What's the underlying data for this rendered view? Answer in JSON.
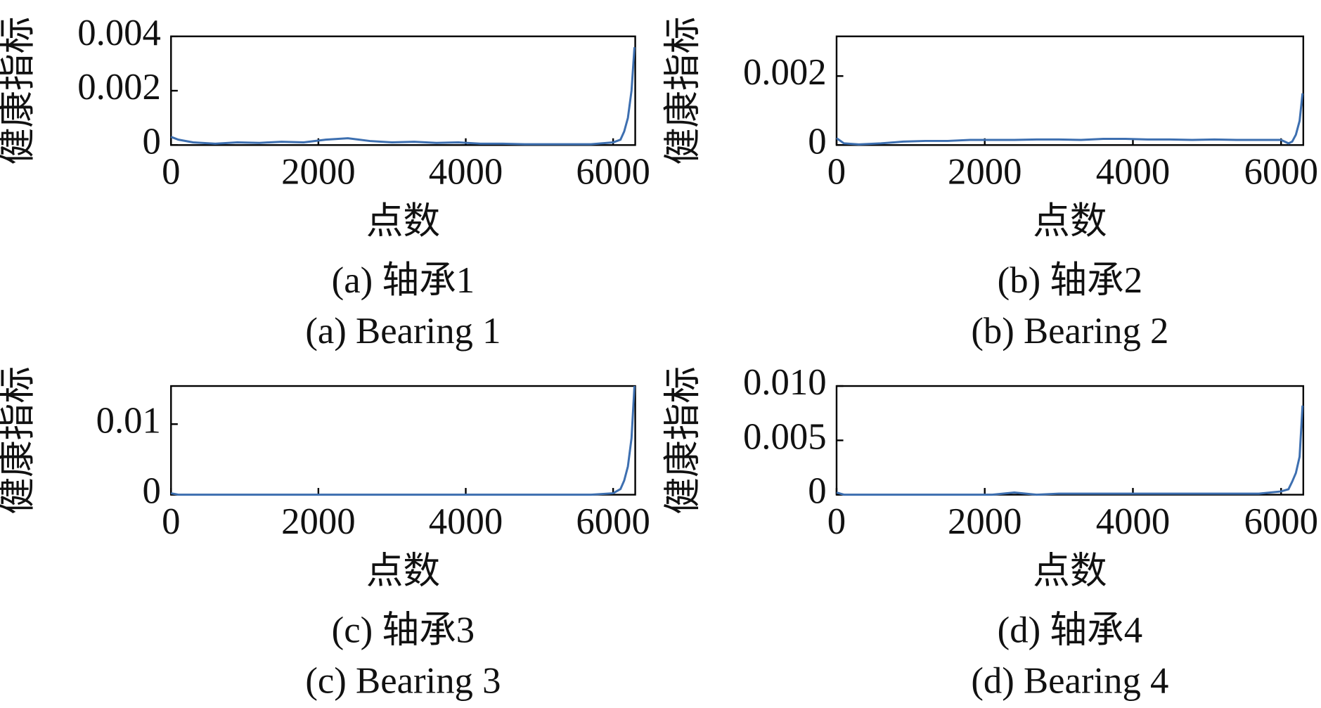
{
  "chart_data": [
    {
      "type": "line",
      "title": "(a) 轴承1",
      "subtitle": "(a) Bearing 1",
      "xlabel": "点数",
      "ylabel": "健康指标",
      "x": [
        0,
        100,
        300,
        600,
        900,
        1200,
        1500,
        1800,
        2100,
        2400,
        2700,
        3000,
        3300,
        3600,
        3900,
        4200,
        4500,
        4800,
        5100,
        5400,
        5700,
        6000,
        6100,
        6150,
        6200,
        6250,
        6290
      ],
      "series": [
        {
          "color": "#3d6fb0",
          "values": [
            0.0003,
            0.0002,
            0.0001,
            5e-05,
            0.0001,
            8e-05,
            0.00012,
            0.0001,
            0.0002,
            0.00025,
            0.00015,
            0.0001,
            0.00012,
            8e-05,
            0.0001,
            5e-05,
            5e-05,
            3e-05,
            3e-05,
            3e-05,
            3e-05,
            0.0001,
            0.0002,
            0.0005,
            0.001,
            0.002,
            0.0036
          ]
        }
      ],
      "xlim": [
        0,
        6300
      ],
      "xticks": [
        0,
        2000,
        4000,
        6000
      ],
      "ylim": [
        0,
        0.004
      ],
      "yticks": [
        0,
        0.002,
        0.004
      ]
    },
    {
      "type": "line",
      "title": "(b) 轴承2",
      "subtitle": "(b) Bearing 2",
      "xlabel": "点数",
      "ylabel": "健康指标",
      "x": [
        0,
        100,
        300,
        600,
        900,
        1200,
        1500,
        1800,
        2100,
        2400,
        2700,
        3000,
        3300,
        3600,
        3900,
        4200,
        4500,
        4800,
        5100,
        5400,
        5700,
        6000,
        6100,
        6150,
        6200,
        6250,
        6290
      ],
      "series": [
        {
          "color": "#3d6fb0",
          "values": [
            0.0002,
            5e-05,
            2e-05,
            5e-05,
            0.0001,
            0.00012,
            0.00012,
            0.00015,
            0.00015,
            0.00015,
            0.00016,
            0.00016,
            0.00015,
            0.00018,
            0.00018,
            0.00016,
            0.00016,
            0.00015,
            0.00016,
            0.00015,
            0.00015,
            0.00015,
            5e-05,
            0.0001,
            0.0003,
            0.0007,
            0.0015
          ]
        }
      ],
      "xlim": [
        0,
        6300
      ],
      "xticks": [
        0,
        2000,
        4000,
        6000
      ],
      "ylim": [
        0,
        0.00315
      ],
      "yticks": [
        0,
        0.002
      ]
    },
    {
      "type": "line",
      "title": "(c) 轴承3",
      "subtitle": "(c) Bearing 3",
      "xlabel": "点数",
      "ylabel": "健康指标",
      "x": [
        0,
        100,
        300,
        600,
        900,
        1200,
        1500,
        1800,
        2100,
        2400,
        2700,
        3000,
        3300,
        3600,
        3900,
        4200,
        4500,
        4800,
        5100,
        5400,
        5700,
        6000,
        6100,
        6150,
        6200,
        6250,
        6290
      ],
      "series": [
        {
          "color": "#3d6fb0",
          "values": [
            0.0002,
            0,
            0,
            0,
            0,
            0,
            0,
            0,
            0,
            0,
            0,
            0,
            0,
            0,
            0,
            0,
            0,
            0,
            0,
            0,
            0,
            0.0002,
            0.0008,
            0.002,
            0.004,
            0.008,
            0.0154
          ]
        }
      ],
      "xlim": [
        0,
        6300
      ],
      "xticks": [
        0,
        2000,
        4000,
        6000
      ],
      "ylim": [
        0,
        0.0154
      ],
      "yticks": [
        0,
        0.01
      ]
    },
    {
      "type": "line",
      "title": "(d) 轴承4",
      "subtitle": "(d) Bearing 4",
      "xlabel": "点数",
      "ylabel": "健康指标",
      "x": [
        0,
        100,
        300,
        600,
        900,
        1200,
        1500,
        1800,
        2100,
        2400,
        2700,
        3000,
        3300,
        3600,
        3900,
        4200,
        4500,
        4800,
        5100,
        5400,
        5700,
        6000,
        6100,
        6150,
        6200,
        6250,
        6290
      ],
      "series": [
        {
          "color": "#3d6fb0",
          "values": [
            0.0002,
            0,
            0,
            0,
            0,
            0,
            0,
            0,
            0,
            0.0002,
            0,
            0.0001,
            0.0001,
            0.0001,
            0.0001,
            0.0001,
            0.0001,
            0.0001,
            0.0001,
            0.0001,
            0.0001,
            0.0003,
            0.0005,
            0.0012,
            0.002,
            0.0035,
            0.0082
          ]
        }
      ],
      "xlim": [
        0,
        6300
      ],
      "xticks": [
        0,
        2000,
        4000,
        6000
      ],
      "ylim": [
        0,
        0.01
      ],
      "yticks": [
        0,
        0.005,
        {
          "value": 0.01,
          "label": "0.010"
        }
      ]
    }
  ]
}
